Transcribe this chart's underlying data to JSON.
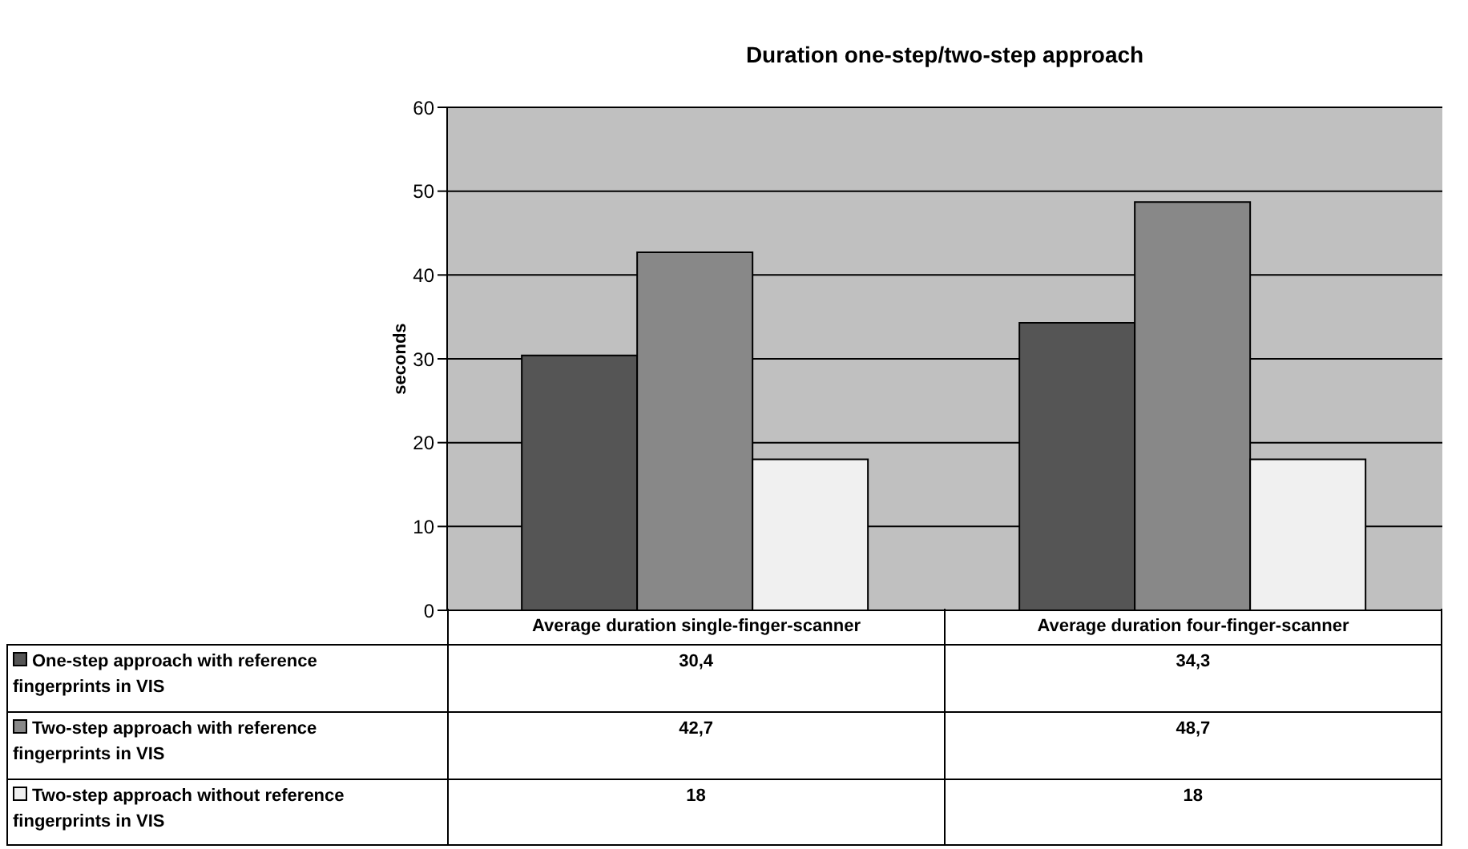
{
  "chart_data": {
    "type": "bar",
    "title": "Duration one-step/two-step approach",
    "ylabel": "seconds",
    "categories": [
      "Average duration single-finger-scanner",
      "Average duration four-finger-scanner"
    ],
    "series": [
      {
        "name": "One-step approach with reference fingerprints in VIS",
        "color": "#555555",
        "values": [
          30.4,
          34.3
        ],
        "value_labels": [
          "30,4",
          "34,3"
        ]
      },
      {
        "name": "Two-step approach with reference fingerprints in VIS",
        "color": "#888888",
        "values": [
          42.7,
          48.7
        ],
        "value_labels": [
          "42,7",
          "48,7"
        ]
      },
      {
        "name": "Two-step approach without reference fingerprints in VIS",
        "color": "#f0f0f0",
        "values": [
          18,
          18
        ],
        "value_labels": [
          "18",
          "18"
        ]
      }
    ],
    "ylim": [
      0,
      60
    ],
    "yticks": [
      0,
      10,
      20,
      30,
      40,
      50,
      60
    ],
    "grid": "y",
    "legend": "bottom left"
  }
}
